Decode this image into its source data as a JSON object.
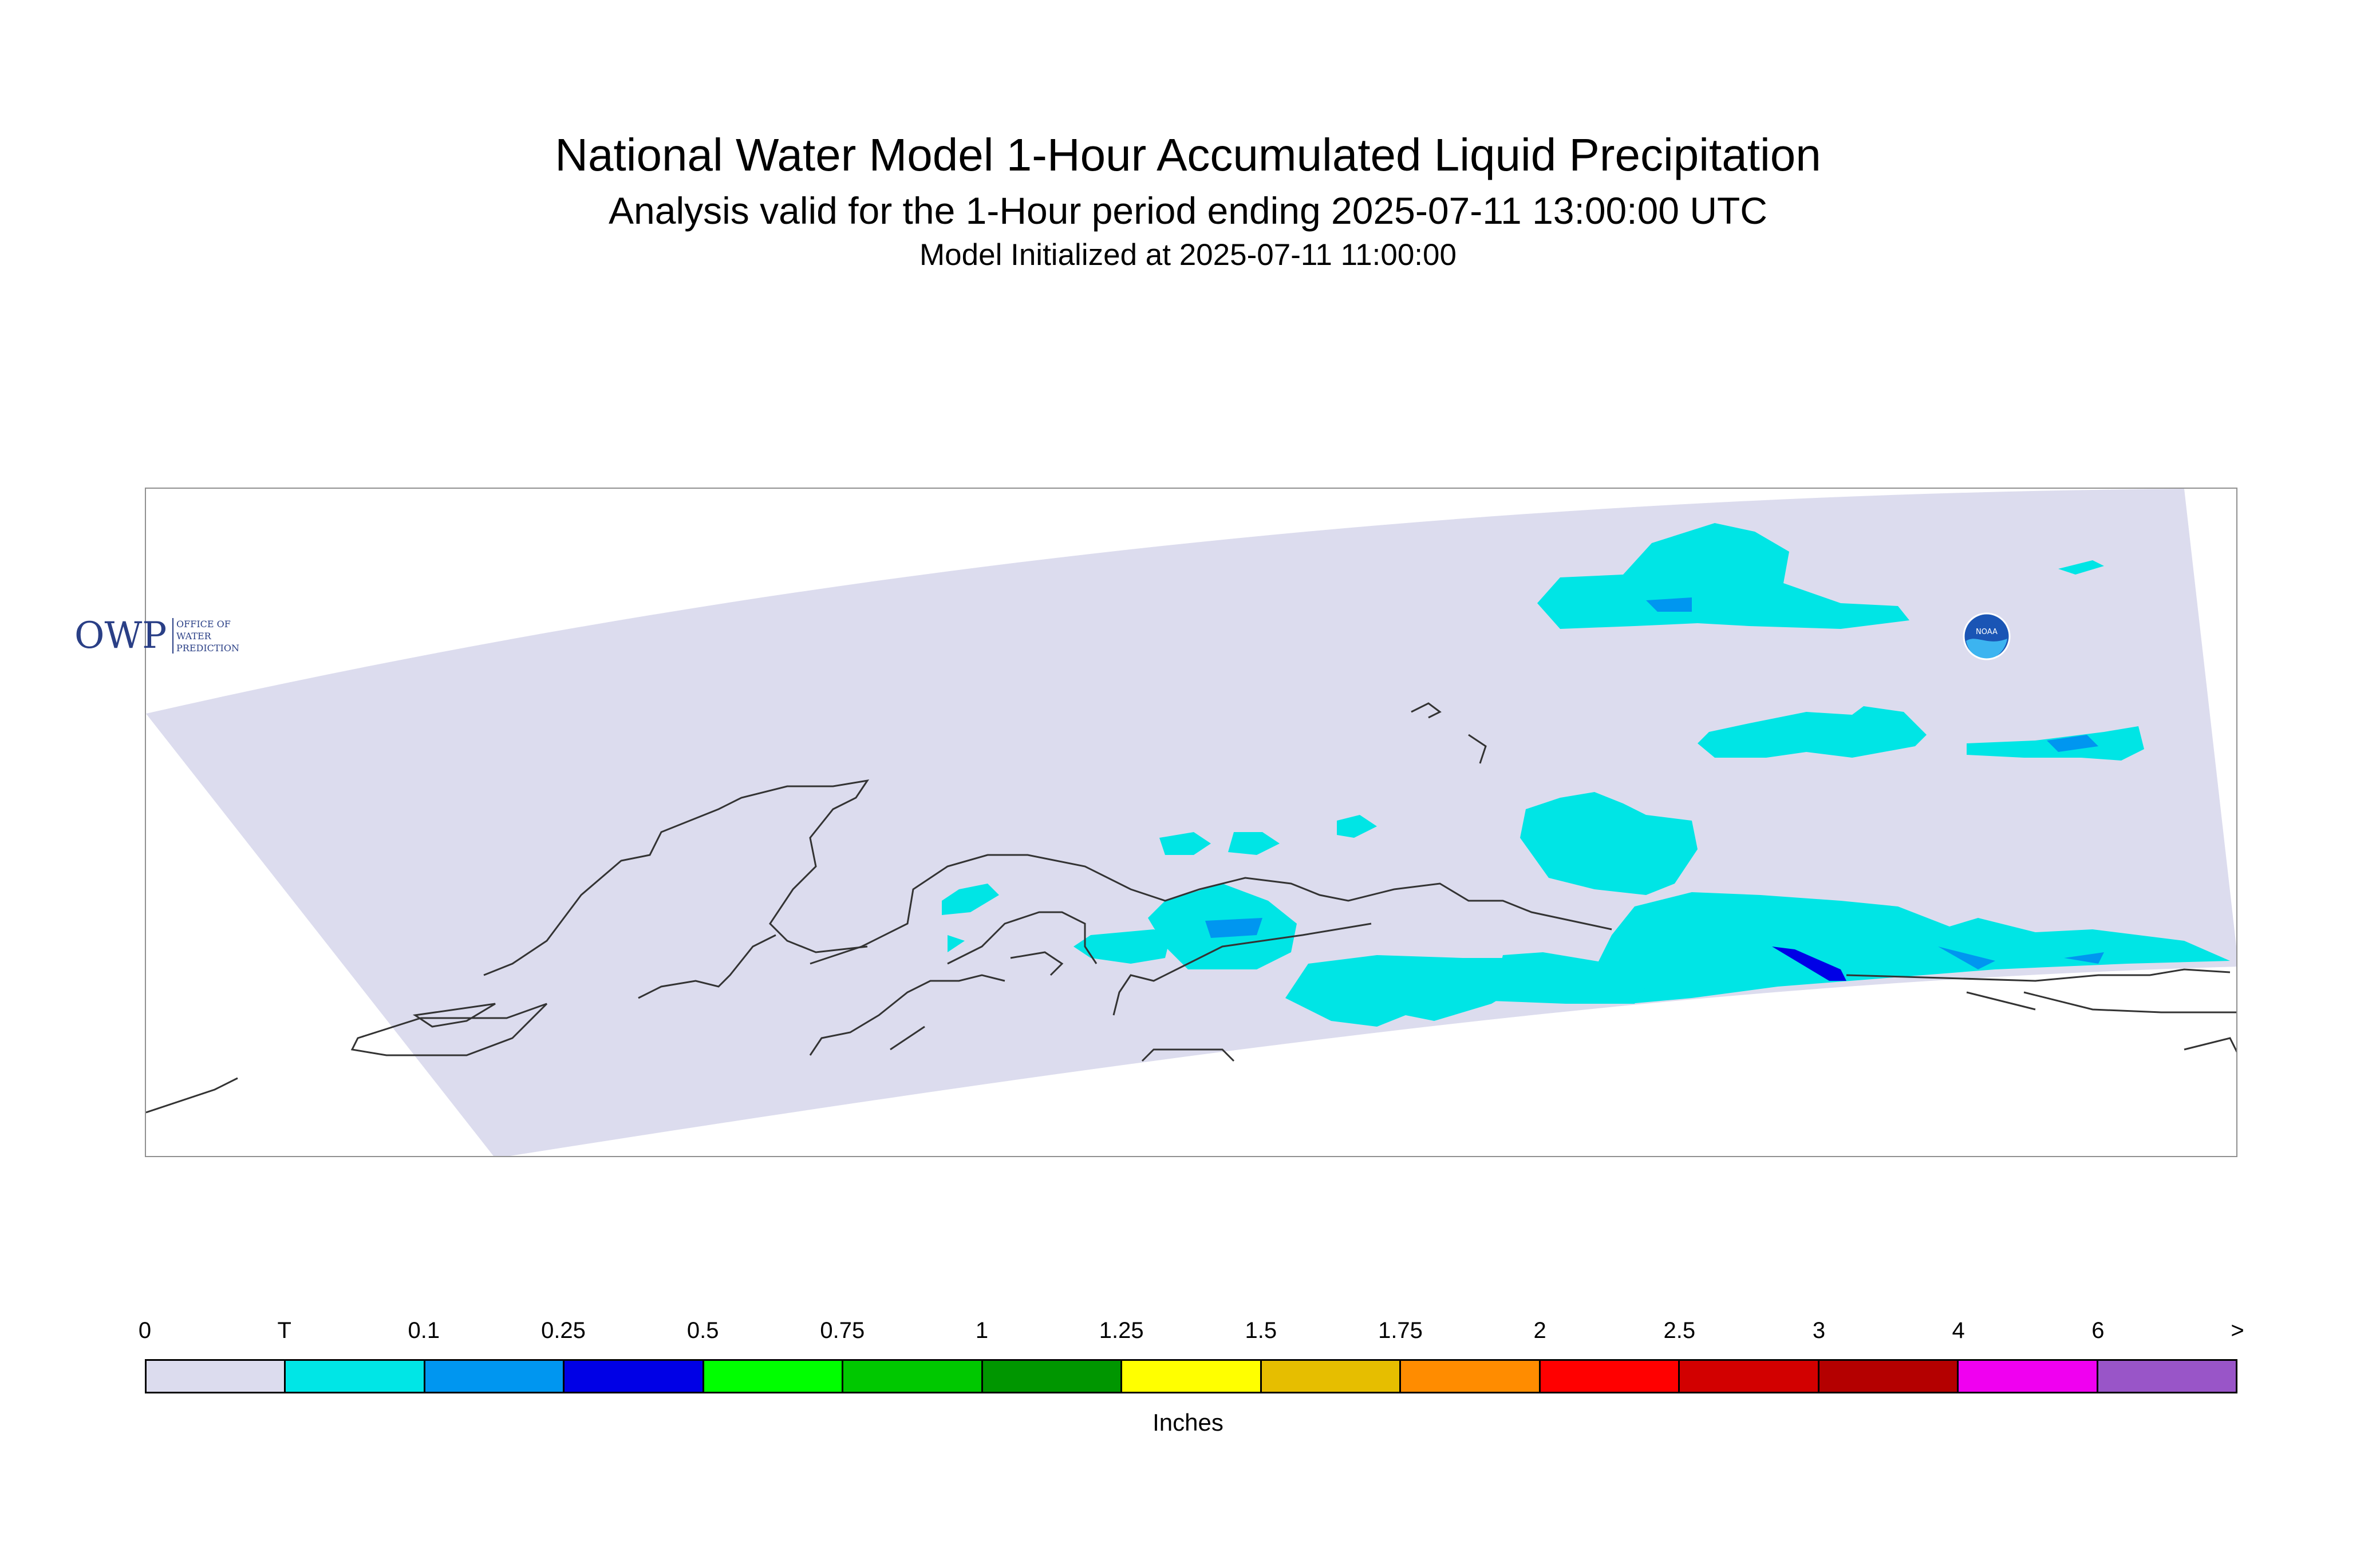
{
  "title": "National Water Model 1-Hour Accumulated Liquid Precipitation",
  "subtitle": "Analysis valid for the 1-Hour period ending 2025-07-11 13:00:00 UTC",
  "init_line": "Model Initialized at 2025-07-11 11:00:00",
  "logos": {
    "owp_text": "OWP",
    "owp_lines": [
      "OFFICE OF",
      "WATER",
      "PREDICTION"
    ],
    "noaa_text": "NOAA"
  },
  "colors": {
    "domain_fill": "#dcdcee",
    "coast": "#333333",
    "trace": "#00e5e5",
    "p01": "#0096f0",
    "p025": "#0000e6"
  },
  "legend": {
    "units": "Inches",
    "ticks": [
      "0",
      "T",
      "0.1",
      "0.25",
      "0.5",
      "0.75",
      "1",
      "1.25",
      "1.5",
      "1.75",
      "2",
      "2.5",
      "3",
      "4",
      "6",
      ">"
    ],
    "colors": [
      "#dcdcee",
      "#00e6e6",
      "#0096f0",
      "#0000e6",
      "#00ff00",
      "#00c800",
      "#009600",
      "#ffff00",
      "#e6be00",
      "#ff8c00",
      "#ff0000",
      "#d20000",
      "#b40000",
      "#f000f0",
      "#9955c8"
    ]
  }
}
